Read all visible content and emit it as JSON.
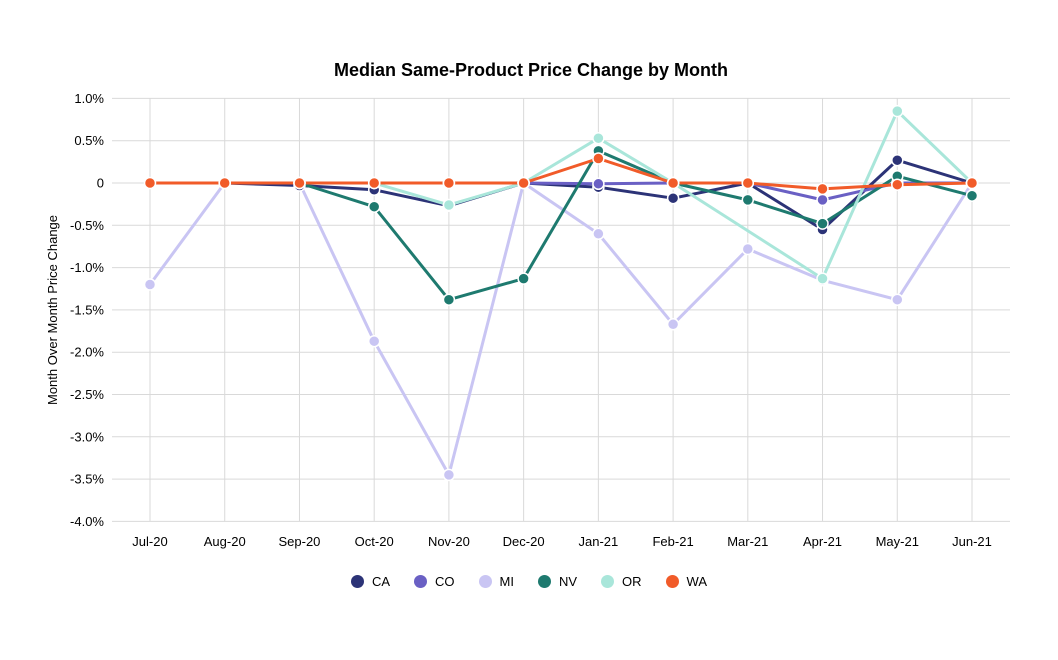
{
  "title": "Median Same-Product Price Change by Month",
  "y_axis_title": "Month Over Month Price Change",
  "chart_data": {
    "type": "line",
    "title": "Median Same-Product Price Change by Month",
    "xlabel": "",
    "ylabel": "Month Over Month Price Change",
    "ylim": [
      -4.0,
      1.0
    ],
    "grid": true,
    "legend_position": "bottom",
    "y_ticks": [
      {
        "value": 1.0,
        "label": "1.0%"
      },
      {
        "value": 0.5,
        "label": "0.5%"
      },
      {
        "value": 0.0,
        "label": "0"
      },
      {
        "value": -0.5,
        "label": "-0.5%"
      },
      {
        "value": -1.0,
        "label": "-1.0%"
      },
      {
        "value": -1.5,
        "label": "-1.5%"
      },
      {
        "value": -2.0,
        "label": "-2.0%"
      },
      {
        "value": -2.5,
        "label": "-2.5%"
      },
      {
        "value": -3.0,
        "label": "-3.0%"
      },
      {
        "value": -3.5,
        "label": "-3.5%"
      },
      {
        "value": -4.0,
        "label": "-4.0%"
      }
    ],
    "categories": [
      "Jul-20",
      "Aug-20",
      "Sep-20",
      "Oct-20",
      "Nov-20",
      "Dec-20",
      "Jan-21",
      "Feb-21",
      "Mar-21",
      "Apr-21",
      "May-21",
      "Jun-21"
    ],
    "series": [
      {
        "name": "CA",
        "color": "#2c3377",
        "values": [
          null,
          0,
          -0.03,
          -0.08,
          -0.27,
          0,
          -0.05,
          -0.18,
          0,
          -0.55,
          0.27,
          0
        ]
      },
      {
        "name": "CO",
        "color": "#6a60c4",
        "values": [
          null,
          0,
          0,
          0,
          0,
          0,
          -0.01,
          0,
          0,
          -0.2,
          0,
          0
        ]
      },
      {
        "name": "MI",
        "color": "#c9c5f3",
        "values": [
          -1.2,
          0,
          0,
          -1.87,
          -3.45,
          0,
          -0.6,
          -1.67,
          -0.78,
          -1.15,
          -1.38,
          0
        ]
      },
      {
        "name": "NV",
        "color": "#1e7a6f",
        "values": [
          null,
          0,
          0,
          -0.28,
          -1.38,
          -1.13,
          0.38,
          0,
          -0.2,
          -0.48,
          0.08,
          -0.15
        ]
      },
      {
        "name": "OR",
        "color": "#a9e6da",
        "values": [
          null,
          null,
          null,
          0,
          -0.26,
          0,
          0.53,
          0,
          null,
          -1.13,
          0.85,
          0
        ]
      },
      {
        "name": "WA",
        "color": "#f15b29",
        "values": [
          0,
          0,
          0,
          0,
          0,
          0,
          0.29,
          0,
          0,
          -0.07,
          -0.02,
          0
        ]
      }
    ],
    "grid_color": "#d9d9d9",
    "text_color": "#000000"
  }
}
